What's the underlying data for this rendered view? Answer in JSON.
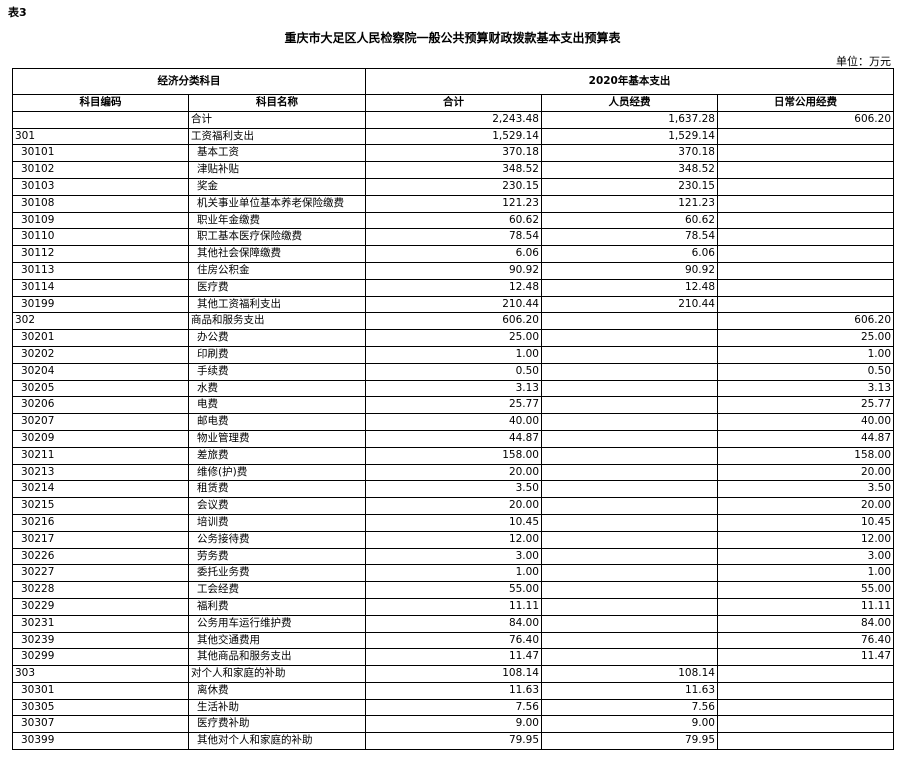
{
  "header": {
    "label": "表3",
    "title": "重庆市大足区人民检察院一般公共预算财政拨款基本支出预算表",
    "unit": "单位：万元"
  },
  "table": {
    "group_headers": [
      "经济分类科目",
      "2020年基本支出"
    ],
    "columns": [
      "科目编码",
      "科目名称",
      "合计",
      "人员经费",
      "日常公用经费"
    ],
    "rows": [
      {
        "name": "合计",
        "total": "2,243.48",
        "personnel": "1,637.28",
        "public": "606.20"
      },
      {
        "code": "301",
        "name": "工资福利支出",
        "total": "1,529.14",
        "personnel": "1,529.14"
      },
      {
        "code": "30101",
        "name": "基本工资",
        "total": "370.18",
        "personnel": "370.18"
      },
      {
        "code": "30102",
        "name": "津贴补贴",
        "total": "348.52",
        "personnel": "348.52"
      },
      {
        "code": "30103",
        "name": "奖金",
        "total": "230.15",
        "personnel": "230.15"
      },
      {
        "code": "30108",
        "name": "机关事业单位基本养老保险缴费",
        "total": "121.23",
        "personnel": "121.23"
      },
      {
        "code": "30109",
        "name": "职业年金缴费",
        "total": "60.62",
        "personnel": "60.62"
      },
      {
        "code": "30110",
        "name": "职工基本医疗保险缴费",
        "total": "78.54",
        "personnel": "78.54"
      },
      {
        "code": "30112",
        "name": "其他社会保障缴费",
        "total": "6.06",
        "personnel": "6.06"
      },
      {
        "code": "30113",
        "name": "住房公积金",
        "total": "90.92",
        "personnel": "90.92"
      },
      {
        "code": "30114",
        "name": "医疗费",
        "total": "12.48",
        "personnel": "12.48"
      },
      {
        "code": "30199",
        "name": "其他工资福利支出",
        "total": "210.44",
        "personnel": "210.44"
      },
      {
        "code": "302",
        "name": "商品和服务支出",
        "total": "606.20",
        "public": "606.20"
      },
      {
        "code": "30201",
        "name": "办公费",
        "total": "25.00",
        "public": "25.00"
      },
      {
        "code": "30202",
        "name": "印刷费",
        "total": "1.00",
        "public": "1.00"
      },
      {
        "code": "30204",
        "name": "手续费",
        "total": "0.50",
        "public": "0.50"
      },
      {
        "code": "30205",
        "name": "水费",
        "total": "3.13",
        "public": "3.13"
      },
      {
        "code": "30206",
        "name": "电费",
        "total": "25.77",
        "public": "25.77"
      },
      {
        "code": "30207",
        "name": "邮电费",
        "total": "40.00",
        "public": "40.00"
      },
      {
        "code": "30209",
        "name": "物业管理费",
        "total": "44.87",
        "public": "44.87"
      },
      {
        "code": "30211",
        "name": "差旅费",
        "total": "158.00",
        "public": "158.00"
      },
      {
        "code": "30213",
        "name": "维修(护)费",
        "total": "20.00",
        "public": "20.00"
      },
      {
        "code": "30214",
        "name": "租赁费",
        "total": "3.50",
        "public": "3.50"
      },
      {
        "code": "30215",
        "name": "会议费",
        "total": "20.00",
        "public": "20.00"
      },
      {
        "code": "30216",
        "name": "培训费",
        "total": "10.45",
        "public": "10.45"
      },
      {
        "code": "30217",
        "name": "公务接待费",
        "total": "12.00",
        "public": "12.00"
      },
      {
        "code": "30226",
        "name": "劳务费",
        "total": "3.00",
        "public": "3.00"
      },
      {
        "code": "30227",
        "name": "委托业务费",
        "total": "1.00",
        "public": "1.00"
      },
      {
        "code": "30228",
        "name": "工会经费",
        "total": "55.00",
        "public": "55.00"
      },
      {
        "code": "30229",
        "name": "福利费",
        "total": "11.11",
        "public": "11.11"
      },
      {
        "code": "30231",
        "name": "公务用车运行维护费",
        "total": "84.00",
        "public": "84.00"
      },
      {
        "code": "30239",
        "name": "其他交通费用",
        "total": "76.40",
        "public": "76.40"
      },
      {
        "code": "30299",
        "name": "其他商品和服务支出",
        "total": "11.47",
        "public": "11.47"
      },
      {
        "code": "303",
        "name": "对个人和家庭的补助",
        "total": "108.14",
        "personnel": "108.14"
      },
      {
        "code": "30301",
        "name": "离休费",
        "total": "11.63",
        "personnel": "11.63"
      },
      {
        "code": "30305",
        "name": "生活补助",
        "total": "7.56",
        "personnel": "7.56"
      },
      {
        "code": "30307",
        "name": "医疗费补助",
        "total": "9.00",
        "personnel": "9.00"
      },
      {
        "code": "30399",
        "name": "其他对个人和家庭的补助",
        "total": "79.95",
        "personnel": "79.95"
      }
    ]
  }
}
